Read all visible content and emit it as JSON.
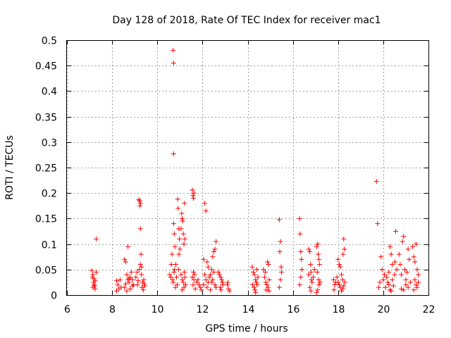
{
  "chart_data": {
    "type": "scatter",
    "title": "Day 128 of 2018, Rate Of TEC Index for receiver mac1",
    "xlabel": "GPS time / hours",
    "ylabel": "ROTI / TECUs",
    "xlim": [
      6,
      22
    ],
    "ylim": [
      0,
      0.5
    ],
    "x_ticks": [
      "6",
      "8",
      "10",
      "12",
      "14",
      "16",
      "18",
      "20",
      "22"
    ],
    "y_ticks": [
      "0",
      "0.05",
      "0.1",
      "0.15",
      "0.2",
      "0.25",
      "0.3",
      "0.35",
      "0.4",
      "0.45",
      "0.5"
    ],
    "grid": true,
    "marker": "+",
    "marker_color": "#ff0000",
    "series": [
      {
        "name": "mac1",
        "points": [
          [
            7.1,
            0.048
          ],
          [
            7.15,
            0.04
          ],
          [
            7.2,
            0.032
          ],
          [
            7.25,
            0.028
          ],
          [
            7.3,
            0.045
          ],
          [
            7.2,
            0.02
          ],
          [
            7.15,
            0.015
          ],
          [
            7.25,
            0.012
          ],
          [
            7.12,
            0.035
          ],
          [
            7.18,
            0.025
          ],
          [
            7.3,
            0.11
          ],
          [
            7.22,
            0.018
          ],
          [
            8.2,
            0.028
          ],
          [
            8.25,
            0.02
          ],
          [
            8.3,
            0.012
          ],
          [
            8.2,
            0.008
          ],
          [
            8.35,
            0.03
          ],
          [
            8.4,
            0.015
          ],
          [
            8.55,
            0.07
          ],
          [
            8.6,
            0.065
          ],
          [
            8.65,
            0.04
          ],
          [
            8.7,
            0.03
          ],
          [
            8.75,
            0.025
          ],
          [
            8.6,
            0.022
          ],
          [
            8.55,
            0.015
          ],
          [
            8.8,
            0.035
          ],
          [
            8.7,
            0.095
          ],
          [
            8.85,
            0.045
          ],
          [
            8.9,
            0.03
          ],
          [
            8.95,
            0.02
          ],
          [
            8.8,
            0.012
          ],
          [
            8.65,
            0.008
          ],
          [
            8.9,
            0.018
          ],
          [
            8.75,
            0.032
          ],
          [
            9.05,
            0.035
          ],
          [
            9.1,
            0.045
          ],
          [
            9.15,
            0.028
          ],
          [
            9.2,
            0.05
          ],
          [
            9.18,
            0.187
          ],
          [
            9.25,
            0.18
          ],
          [
            9.22,
            0.185
          ],
          [
            9.23,
            0.175
          ],
          [
            9.25,
            0.13
          ],
          [
            9.28,
            0.08
          ],
          [
            9.3,
            0.055
          ],
          [
            9.12,
            0.02
          ],
          [
            9.32,
            0.015
          ],
          [
            9.35,
            0.025
          ],
          [
            9.4,
            0.03
          ],
          [
            9.45,
            0.018
          ],
          [
            9.38,
            0.01
          ],
          [
            9.42,
            0.022
          ],
          [
            9.3,
            0.04
          ],
          [
            9.25,
            0.06
          ],
          [
            10.55,
            0.04
          ],
          [
            10.6,
            0.035
          ],
          [
            10.62,
            0.06
          ],
          [
            10.65,
            0.08
          ],
          [
            10.68,
            0.03
          ],
          [
            10.7,
            0.025
          ],
          [
            10.72,
            0.14
          ],
          [
            10.75,
            0.12
          ],
          [
            10.78,
            0.095
          ],
          [
            10.76,
            0.05
          ],
          [
            10.74,
            0.045
          ],
          [
            10.7,
            0.48
          ],
          [
            10.72,
            0.455
          ],
          [
            10.72,
            0.277
          ],
          [
            10.8,
            0.015
          ],
          [
            10.82,
            0.06
          ],
          [
            10.85,
            0.035
          ],
          [
            10.88,
            0.02
          ],
          [
            10.9,
            0.188
          ],
          [
            10.92,
            0.17
          ],
          [
            10.95,
            0.13
          ],
          [
            10.98,
            0.11
          ],
          [
            10.96,
            0.08
          ],
          [
            10.94,
            0.05
          ],
          [
            11.0,
            0.09
          ],
          [
            11.05,
            0.13
          ],
          [
            11.08,
            0.16
          ],
          [
            11.1,
            0.15
          ],
          [
            11.12,
            0.145
          ],
          [
            11.15,
            0.12
          ],
          [
            11.18,
            0.1
          ],
          [
            11.2,
            0.18
          ],
          [
            11.22,
            0.11
          ],
          [
            11.05,
            0.04
          ],
          [
            11.1,
            0.03
          ],
          [
            11.15,
            0.025
          ],
          [
            11.2,
            0.045
          ],
          [
            11.25,
            0.02
          ],
          [
            11.1,
            0.01
          ],
          [
            11.18,
            0.015
          ],
          [
            11.22,
            0.035
          ],
          [
            11.55,
            0.206
          ],
          [
            11.58,
            0.195
          ],
          [
            11.6,
            0.19
          ],
          [
            11.62,
            0.2
          ],
          [
            11.6,
            0.045
          ],
          [
            11.55,
            0.035
          ],
          [
            11.65,
            0.04
          ],
          [
            11.62,
            0.03
          ],
          [
            11.58,
            0.02
          ],
          [
            11.68,
            0.012
          ],
          [
            11.75,
            0.025
          ],
          [
            11.85,
            0.02
          ],
          [
            11.9,
            0.015
          ],
          [
            11.95,
            0.01
          ],
          [
            11.8,
            0.03
          ],
          [
            12.05,
            0.07
          ],
          [
            12.1,
            0.18
          ],
          [
            12.15,
            0.165
          ],
          [
            12.2,
            0.065
          ],
          [
            12.25,
            0.055
          ],
          [
            12.1,
            0.04
          ],
          [
            12.15,
            0.03
          ],
          [
            12.05,
            0.02
          ],
          [
            12.2,
            0.015
          ],
          [
            12.25,
            0.025
          ],
          [
            12.3,
            0.035
          ],
          [
            12.35,
            0.01
          ],
          [
            12.4,
            0.05
          ],
          [
            12.45,
            0.075
          ],
          [
            12.5,
            0.085
          ],
          [
            12.55,
            0.09
          ],
          [
            12.6,
            0.105
          ],
          [
            12.5,
            0.045
          ],
          [
            12.45,
            0.03
          ],
          [
            12.55,
            0.02
          ],
          [
            12.6,
            0.015
          ],
          [
            12.35,
            0.04
          ],
          [
            12.4,
            0.025
          ],
          [
            12.75,
            0.04
          ],
          [
            12.8,
            0.035
          ],
          [
            12.85,
            0.03
          ],
          [
            12.9,
            0.02
          ],
          [
            12.78,
            0.015
          ],
          [
            12.82,
            0.01
          ],
          [
            12.88,
            0.025
          ],
          [
            12.7,
            0.045
          ],
          [
            13.1,
            0.02
          ],
          [
            13.15,
            0.012
          ],
          [
            13.2,
            0.008
          ],
          [
            13.12,
            0.025
          ],
          [
            14.2,
            0.055
          ],
          [
            14.25,
            0.045
          ],
          [
            14.3,
            0.04
          ],
          [
            14.35,
            0.03
          ],
          [
            14.22,
            0.02
          ],
          [
            14.28,
            0.015
          ],
          [
            14.32,
            0.01
          ],
          [
            14.38,
            0.025
          ],
          [
            14.4,
            0.05
          ],
          [
            14.45,
            0.035
          ],
          [
            14.42,
            0.02
          ],
          [
            14.35,
            0.005
          ],
          [
            14.7,
            0.05
          ],
          [
            14.75,
            0.035
          ],
          [
            14.8,
            0.025
          ],
          [
            14.85,
            0.02
          ],
          [
            14.9,
            0.015
          ],
          [
            14.95,
            0.03
          ],
          [
            14.88,
            0.065
          ],
          [
            14.92,
            0.06
          ],
          [
            14.78,
            0.045
          ],
          [
            14.82,
            0.01
          ],
          [
            14.95,
            0.008
          ],
          [
            15.4,
            0.148
          ],
          [
            15.45,
            0.105
          ],
          [
            15.42,
            0.085
          ],
          [
            15.48,
            0.055
          ],
          [
            15.5,
            0.045
          ],
          [
            15.45,
            0.03
          ],
          [
            15.4,
            0.015
          ],
          [
            16.3,
            0.15
          ],
          [
            16.32,
            0.12
          ],
          [
            16.35,
            0.085
          ],
          [
            16.38,
            0.07
          ],
          [
            16.4,
            0.05
          ],
          [
            16.35,
            0.035
          ],
          [
            16.3,
            0.02
          ],
          [
            16.7,
            0.09
          ],
          [
            16.75,
            0.085
          ],
          [
            16.78,
            0.06
          ],
          [
            16.8,
            0.045
          ],
          [
            16.82,
            0.03
          ],
          [
            16.85,
            0.025
          ],
          [
            16.75,
            0.015
          ],
          [
            16.8,
            0.008
          ],
          [
            16.7,
            0.04
          ],
          [
            16.9,
            0.035
          ],
          [
            16.95,
            0.05
          ],
          [
            17.05,
            0.095
          ],
          [
            17.1,
            0.1
          ],
          [
            17.12,
            0.08
          ],
          [
            17.15,
            0.07
          ],
          [
            17.18,
            0.06
          ],
          [
            17.08,
            0.045
          ],
          [
            17.14,
            0.03
          ],
          [
            17.16,
            0.02
          ],
          [
            17.1,
            0.01
          ],
          [
            17.05,
            0.005
          ],
          [
            17.2,
            0.025
          ],
          [
            17.8,
            0.03
          ],
          [
            17.85,
            0.02
          ],
          [
            17.82,
            0.01
          ],
          [
            17.9,
            0.025
          ],
          [
            17.95,
            0.035
          ],
          [
            18.0,
            0.07
          ],
          [
            18.05,
            0.06
          ],
          [
            18.1,
            0.055
          ],
          [
            18.15,
            0.04
          ],
          [
            18.2,
            0.03
          ],
          [
            18.05,
            0.02
          ],
          [
            18.1,
            0.015
          ],
          [
            18.15,
            0.008
          ],
          [
            18.2,
            0.012
          ],
          [
            18.25,
            0.11
          ],
          [
            18.28,
            0.09
          ],
          [
            18.22,
            0.08
          ],
          [
            18.3,
            0.025
          ],
          [
            18.25,
            0.018
          ],
          [
            18.0,
            0.025
          ],
          [
            19.7,
            0.223
          ],
          [
            19.75,
            0.14
          ],
          [
            19.8,
            0.015
          ],
          [
            19.85,
            0.025
          ],
          [
            19.9,
            0.075
          ],
          [
            19.95,
            0.05
          ],
          [
            20.0,
            0.03
          ],
          [
            20.05,
            0.04
          ],
          [
            20.1,
            0.015
          ],
          [
            20.15,
            0.035
          ],
          [
            20.2,
            0.025
          ],
          [
            20.25,
            0.045
          ],
          [
            20.3,
            0.095
          ],
          [
            20.35,
            0.08
          ],
          [
            20.4,
            0.06
          ],
          [
            20.25,
            0.02
          ],
          [
            20.3,
            0.01
          ],
          [
            20.4,
            0.03
          ],
          [
            20.5,
            0.04
          ],
          [
            20.55,
            0.125
          ],
          [
            20.52,
            0.065
          ],
          [
            20.6,
            0.05
          ],
          [
            20.45,
            0.018
          ],
          [
            20.35,
            0.008
          ],
          [
            20.7,
            0.08
          ],
          [
            20.75,
            0.06
          ],
          [
            20.8,
            0.04
          ],
          [
            20.85,
            0.105
          ],
          [
            20.9,
            0.115
          ],
          [
            20.95,
            0.05
          ],
          [
            21.0,
            0.03
          ],
          [
            21.05,
            0.045
          ],
          [
            21.1,
            0.09
          ],
          [
            21.15,
            0.07
          ],
          [
            21.0,
            0.02
          ],
          [
            21.1,
            0.015
          ],
          [
            20.8,
            0.012
          ],
          [
            21.2,
            0.025
          ],
          [
            20.9,
            0.01
          ],
          [
            21.3,
            0.095
          ],
          [
            21.35,
            0.075
          ],
          [
            21.4,
            0.065
          ],
          [
            21.45,
            0.1
          ],
          [
            21.5,
            0.05
          ],
          [
            21.55,
            0.04
          ],
          [
            21.4,
            0.03
          ],
          [
            21.45,
            0.02
          ],
          [
            21.5,
            0.015
          ],
          [
            21.35,
            0.01
          ],
          [
            21.55,
            0.025
          ]
        ]
      }
    ]
  }
}
